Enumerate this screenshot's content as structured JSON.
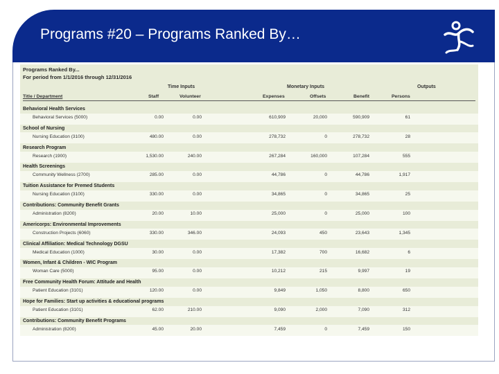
{
  "slide": {
    "title": "Programs #20 – Programs Ranked By…",
    "logo_icon": "dancing-figure-logo-icon",
    "colors": {
      "header": "#0b2a8c",
      "report_bg": "#e8ecd8",
      "band": "#f6f8ee"
    }
  },
  "report": {
    "title": "Programs Ranked By...",
    "period": "For period from 1/1/2016 through 12/31/2016",
    "group_headers": {
      "time_inputs": "Time Inputs",
      "monetary_inputs": "Monetary Inputs",
      "outputs": "Outputs"
    },
    "columns": {
      "title_dept": "Title / Department",
      "staff": "Staff",
      "volunteer": "Volunteer",
      "expenses": "Expenses",
      "offsets": "Offsets",
      "benefit": "Benefit",
      "persons": "Persons"
    },
    "programs": [
      {
        "title": "Behavioral Health Services",
        "dept": "Behavioral Services (5000)",
        "staff": "0.00",
        "volunteer": "0.00",
        "expenses": "610,909",
        "offsets": "20,000",
        "benefit": "590,909",
        "persons": "61"
      },
      {
        "title": "School of Nursing",
        "dept": "Nursing Education (3100)",
        "staff": "480.00",
        "volunteer": "0.00",
        "expenses": "278,732",
        "offsets": "0",
        "benefit": "278,732",
        "persons": "28"
      },
      {
        "title": "Research Program",
        "dept": "Research (1900)",
        "staff": "1,530.00",
        "volunteer": "240.00",
        "expenses": "267,284",
        "offsets": "160,000",
        "benefit": "107,284",
        "persons": "555"
      },
      {
        "title": "Health Screenings",
        "dept": "Community Wellness (2700)",
        "staff": "285.00",
        "volunteer": "0.00",
        "expenses": "44,786",
        "offsets": "0",
        "benefit": "44,786",
        "persons": "1,917"
      },
      {
        "title": "Tuition Assistance for Premed Students",
        "dept": "Nursing Education (3100)",
        "staff": "330.00",
        "volunteer": "0.00",
        "expenses": "34,865",
        "offsets": "0",
        "benefit": "34,865",
        "persons": "25"
      },
      {
        "title": "Contributions: Community Benefit Grants",
        "dept": "Administration (8200)",
        "staff": "20.00",
        "volunteer": "10.00",
        "expenses": "25,000",
        "offsets": "0",
        "benefit": "25,000",
        "persons": "100"
      },
      {
        "title": "Americorps: Environmental Improvements",
        "dept": "Construction Projects (6060)",
        "staff": "330.00",
        "volunteer": "346.00",
        "expenses": "24,093",
        "offsets": "450",
        "benefit": "23,643",
        "persons": "1,345"
      },
      {
        "title": "Clinical Affiliation: Medical Technology DGSU",
        "dept": "Medical Education (1000)",
        "staff": "30.00",
        "volunteer": "0.00",
        "expenses": "17,382",
        "offsets": "700",
        "benefit": "16,682",
        "persons": "6"
      },
      {
        "title": "Women, Infant & Children - WIC Program",
        "dept": "Woman Care (5000)",
        "staff": "95.00",
        "volunteer": "0.00",
        "expenses": "10,212",
        "offsets": "215",
        "benefit": "9,997",
        "persons": "19"
      },
      {
        "title": "Free Community Health Forum: Attitude and Health",
        "dept": "Patient Education (3101)",
        "staff": "120.00",
        "volunteer": "0.00",
        "expenses": "9,849",
        "offsets": "1,050",
        "benefit": "8,800",
        "persons": "650"
      },
      {
        "title": "Hope for Families: Start up activities & educational programs",
        "dept": "Patient Education (3101)",
        "staff": "62.00",
        "volunteer": "210.00",
        "expenses": "9,090",
        "offsets": "2,000",
        "benefit": "7,090",
        "persons": "312"
      },
      {
        "title": "Contributions: Community Benefit Programs",
        "dept": "Administration (8200)",
        "staff": "45.00",
        "volunteer": "20.00",
        "expenses": "7,459",
        "offsets": "0",
        "benefit": "7,459",
        "persons": "150"
      }
    ]
  }
}
